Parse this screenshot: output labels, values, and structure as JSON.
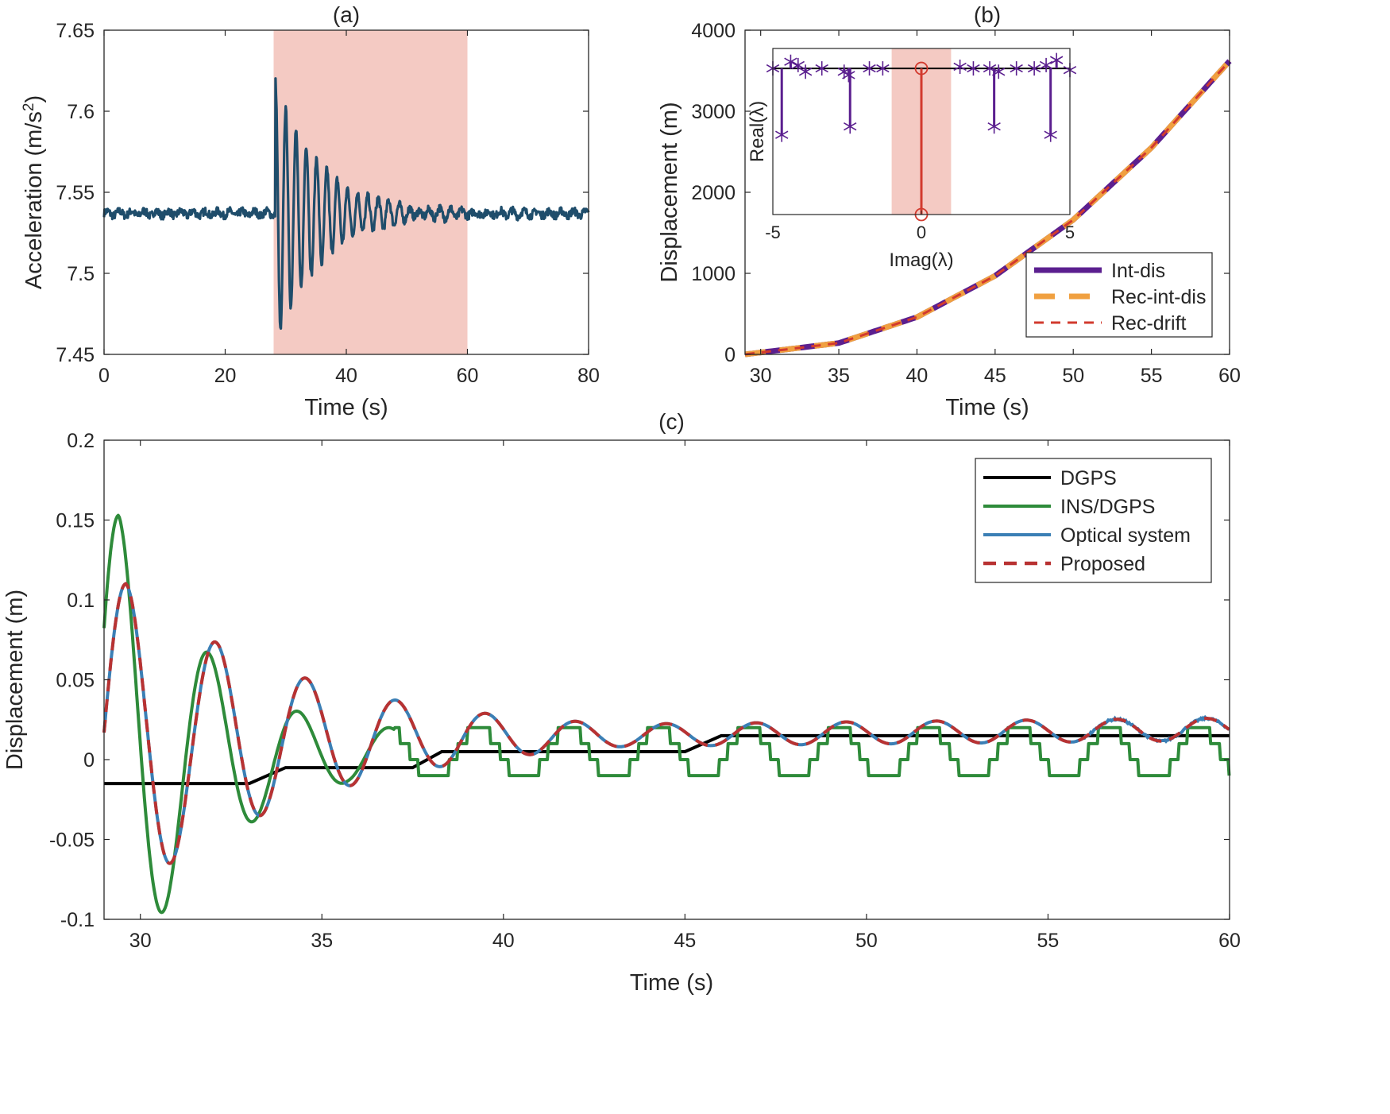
{
  "chart_data": [
    {
      "id": "a",
      "type": "line",
      "title": "(a)",
      "xlabel": "Time (s)",
      "ylabel_main": "Acceleration (m/s",
      "ylabel_sup": "2",
      "ylabel_tail": ")",
      "xlim": [
        0,
        80
      ],
      "ylim": [
        7.45,
        7.65
      ],
      "xticks": [
        0,
        20,
        40,
        60,
        80
      ],
      "yticks": [
        7.45,
        7.5,
        7.55,
        7.6,
        7.65
      ],
      "shaded_region": {
        "x": [
          28,
          60
        ],
        "color": "#f4cac3"
      },
      "grid": false,
      "series": [
        {
          "color": "#1f4d6b",
          "model": {
            "baseline": 7.537,
            "noise_amplitude": 0.003,
            "impulse_start": 28.3,
            "oscillation_amplitude": 0.082,
            "oscillation_period": 1.7,
            "decay_time_constant": 7.5,
            "peak": [
              28.5,
              7.62
            ],
            "trough": [
              29.4,
              7.478
            ]
          }
        }
      ]
    },
    {
      "id": "b",
      "type": "line",
      "title": "(b)",
      "xlabel": "Time (s)",
      "ylabel": "Displacement (m)",
      "xlim": [
        29,
        60
      ],
      "ylim": [
        0,
        4000
      ],
      "xticks": [
        30,
        35,
        40,
        45,
        50,
        55,
        60
      ],
      "yticks": [
        0,
        1000,
        2000,
        3000,
        4000
      ],
      "grid": false,
      "legend_position": "bottom-right",
      "series": [
        {
          "name": "Int-dis",
          "color": "#5b1f8f",
          "style": "solid",
          "x": [
            29,
            35,
            40,
            45,
            50,
            55,
            60
          ],
          "values": [
            0,
            140,
            460,
            970,
            1660,
            2550,
            3620
          ]
        },
        {
          "name": "Rec-int-dis",
          "color": "#f0a040",
          "style": "dashed",
          "x": [
            29,
            35,
            40,
            45,
            50,
            55,
            60
          ],
          "values": [
            0,
            140,
            460,
            970,
            1660,
            2550,
            3620
          ]
        },
        {
          "name": "Rec-drift",
          "color": "#d23a2e",
          "style": "dashed",
          "x": [
            29,
            35,
            40,
            45,
            50,
            55,
            60
          ],
          "values": [
            0,
            140,
            460,
            970,
            1660,
            2550,
            3620
          ]
        }
      ],
      "inset": {
        "type": "stem",
        "xlabel": "Imag(λ)",
        "ylabel": "Real(λ)",
        "xlim": [
          -5,
          5
        ],
        "xticks": [
          -5,
          0,
          5
        ],
        "shaded_region": {
          "x": [
            -1,
            1
          ],
          "color": "#f4cac3"
        },
        "baseline_value": 0.88,
        "ylim": [
          0,
          1.0
        ],
        "stems_purple": [
          {
            "x": -5.0,
            "y": 0.88
          },
          {
            "x": -4.7,
            "y": 0.48
          },
          {
            "x": -4.4,
            "y": 0.92
          },
          {
            "x": -4.15,
            "y": 0.9
          },
          {
            "x": -3.9,
            "y": 0.86
          },
          {
            "x": -3.35,
            "y": 0.88
          },
          {
            "x": -2.6,
            "y": 0.86
          },
          {
            "x": -2.4,
            "y": 0.53
          },
          {
            "x": -2.45,
            "y": 0.84
          },
          {
            "x": -1.75,
            "y": 0.88
          },
          {
            "x": -1.3,
            "y": 0.88
          },
          {
            "x": 1.3,
            "y": 0.89
          },
          {
            "x": 1.75,
            "y": 0.88
          },
          {
            "x": 2.3,
            "y": 0.88
          },
          {
            "x": 2.45,
            "y": 0.53
          },
          {
            "x": 2.6,
            "y": 0.86
          },
          {
            "x": 3.2,
            "y": 0.88
          },
          {
            "x": 3.8,
            "y": 0.88
          },
          {
            "x": 4.2,
            "y": 0.9
          },
          {
            "x": 4.35,
            "y": 0.48
          },
          {
            "x": 4.55,
            "y": 0.93
          },
          {
            "x": 5.0,
            "y": 0.87
          }
        ],
        "stem_red": {
          "x": 0,
          "y_top": 0.88,
          "y_bottom": 0.0
        }
      }
    },
    {
      "id": "c",
      "type": "line",
      "title": "(c)",
      "xlabel": "Time (s)",
      "ylabel": "Displacement (m)",
      "xlim": [
        29,
        60
      ],
      "ylim": [
        -0.1,
        0.2
      ],
      "xticks": [
        30,
        35,
        40,
        45,
        50,
        55,
        60
      ],
      "yticks": [
        -0.1,
        -0.05,
        0,
        0.05,
        0.1,
        0.15,
        0.2
      ],
      "grid": false,
      "legend_position": "top-right",
      "series": [
        {
          "name": "DGPS",
          "color": "#000000",
          "style": "solid",
          "x": [
            29,
            33,
            34,
            37.5,
            38.3,
            45,
            46,
            60
          ],
          "values": [
            -0.015,
            -0.015,
            -0.005,
            -0.005,
            0.005,
            0.005,
            0.015,
            0.015
          ]
        },
        {
          "name": "INS/DGPS",
          "color": "#2e8b3a",
          "style": "solid",
          "model": {
            "offset": 0.003,
            "amplitude": 0.15,
            "period": 2.48,
            "decay": 2.9,
            "min_amplitude": 0.017,
            "quantization": 0.01,
            "t0": 29.4
          }
        },
        {
          "name": "Optical system",
          "color": "#3b7fb5",
          "style": "solid",
          "model": {
            "amplitude": 0.098,
            "period": 2.48,
            "decay": 5.2,
            "offset_start": 0.012,
            "offset_end": 0.019,
            "min_amplitude": 0.007,
            "t0": 29.6,
            "noise_after": 56
          }
        },
        {
          "name": "Proposed",
          "color": "#b83232",
          "style": "dashed",
          "model": {
            "amplitude": 0.098,
            "period": 2.48,
            "decay": 5.2,
            "offset_start": 0.012,
            "offset_end": 0.019,
            "min_amplitude": 0.007,
            "t0": 29.6
          }
        }
      ]
    }
  ]
}
